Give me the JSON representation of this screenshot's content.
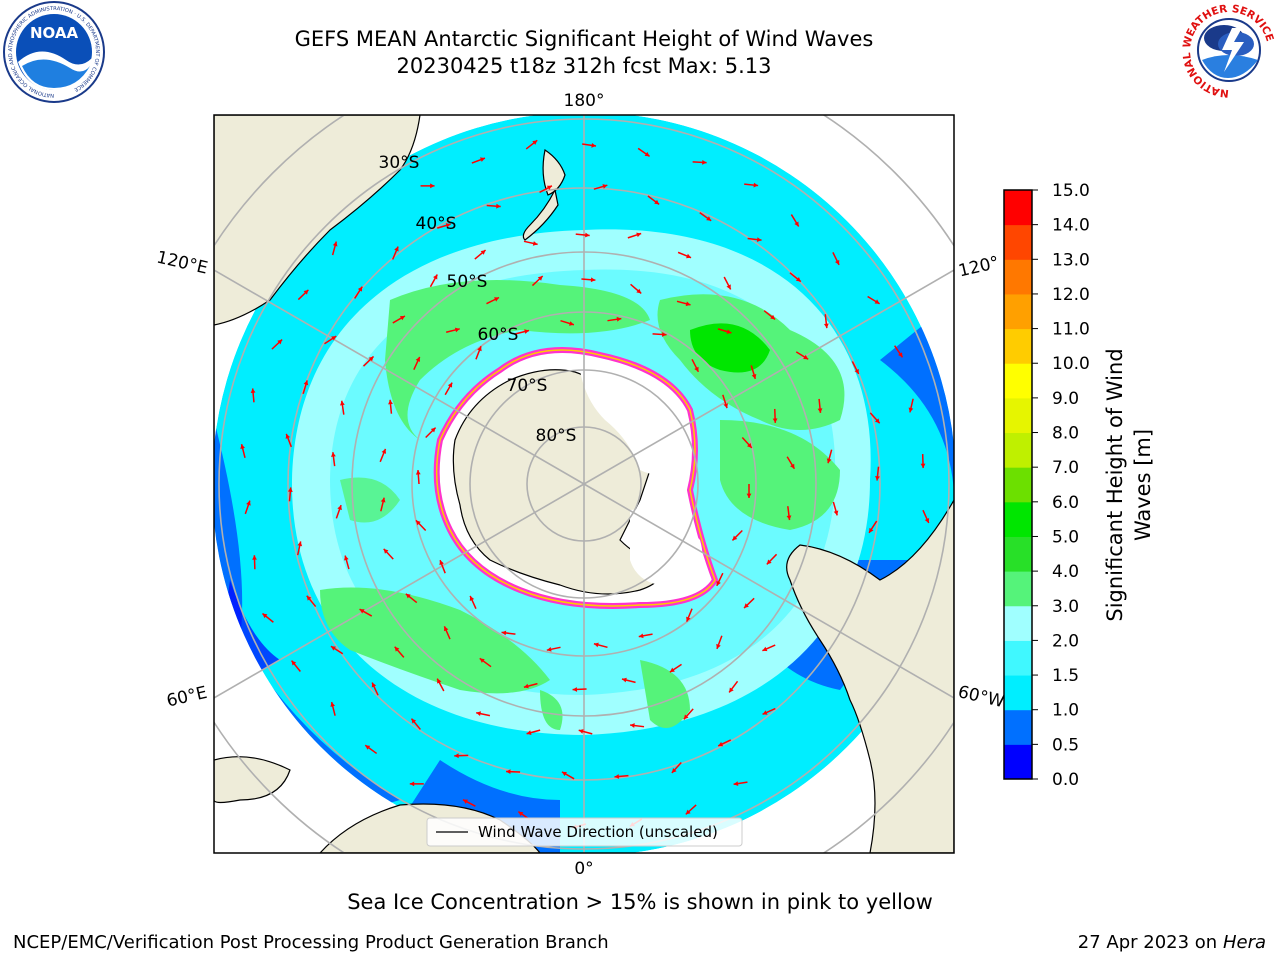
{
  "title": {
    "line1": "GEFS MEAN Antarctic Significant Height of Wind Waves",
    "line2": "20230425 t18z 312h fcst   Max: 5.13"
  },
  "logos": {
    "noaa_text": "NOAA",
    "noaa_ring_text": "NATIONAL OCEANIC AND ATMOSPHERIC ADMINISTRATION · U.S. DEPARTMENT OF COMMERCE",
    "nws_ring_text": "NATIONAL WEATHER SERVICE"
  },
  "map": {
    "projection": "south-polar-stereographic",
    "lon_labels": {
      "top": "180°",
      "bottom": "0°",
      "left_upper": "120°E",
      "left_lower": "60°E",
      "right_upper": "120°",
      "right_lower": "60°W"
    },
    "lat_labels": [
      "30°S",
      "40°S",
      "50°S",
      "60°S",
      "70°S",
      "80°S"
    ],
    "legend_label": "Wind Wave Direction (unscaled)",
    "colors": {
      "land": "#eeecd9",
      "ice": "#ffffff",
      "ice_edge": "#ff33cc",
      "arrow": "#ff0000",
      "grid": "#b0b0b0"
    }
  },
  "colorbar": {
    "label_line1": "Significant Height of Wind",
    "label_line2": "Waves [m]",
    "ticks": [
      "0.0",
      "0.5",
      "1.0",
      "1.5",
      "2.0",
      "3.0",
      "4.0",
      "5.0",
      "6.0",
      "7.0",
      "8.0",
      "9.0",
      "10.0",
      "11.0",
      "12.0",
      "13.0",
      "14.0",
      "15.0"
    ],
    "colors": [
      "#0000ff",
      "#0070ff",
      "#00eeff",
      "#40f8ff",
      "#a0ffff",
      "#55f37a",
      "#28e028",
      "#00e600",
      "#6ce000",
      "#bff000",
      "#e6f500",
      "#ffff00",
      "#ffcc00",
      "#ffa000",
      "#ff7800",
      "#ff4600",
      "#ff0000"
    ]
  },
  "caption": "Sea Ice Concentration > 15% is shown in pink to yellow",
  "footer": {
    "left": "NCEP/EMC/Verification Post Processing Product Generation Branch",
    "date": "27 Apr 2023 on ",
    "machine": "Hera"
  }
}
